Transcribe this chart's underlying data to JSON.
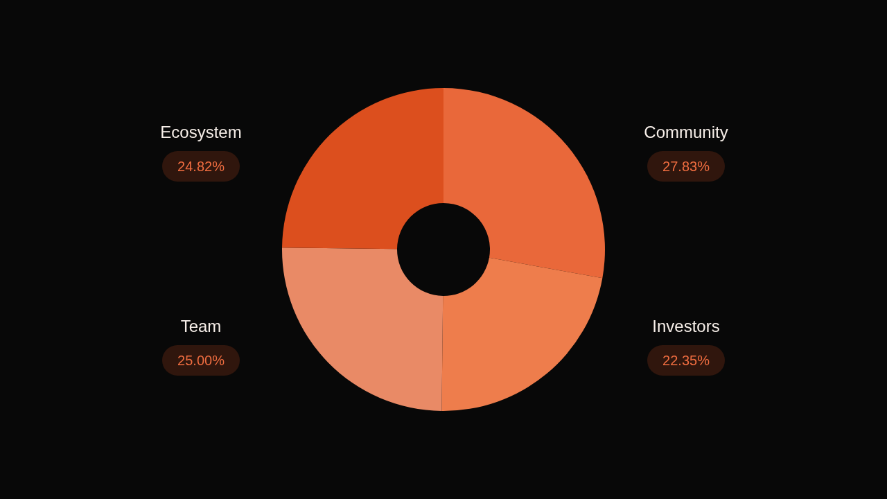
{
  "chart_data": {
    "type": "donut",
    "categories": [
      "Community",
      "Investors",
      "Team",
      "Ecosystem"
    ],
    "values": [
      27.83,
      22.35,
      25.0,
      24.82
    ],
    "value_labels": [
      "27.83%",
      "22.35%",
      "25.00%",
      "24.82%"
    ],
    "colors": [
      "#e9683a",
      "#ee7d4c",
      "#e98a66",
      "#dc4f1e"
    ]
  }
}
